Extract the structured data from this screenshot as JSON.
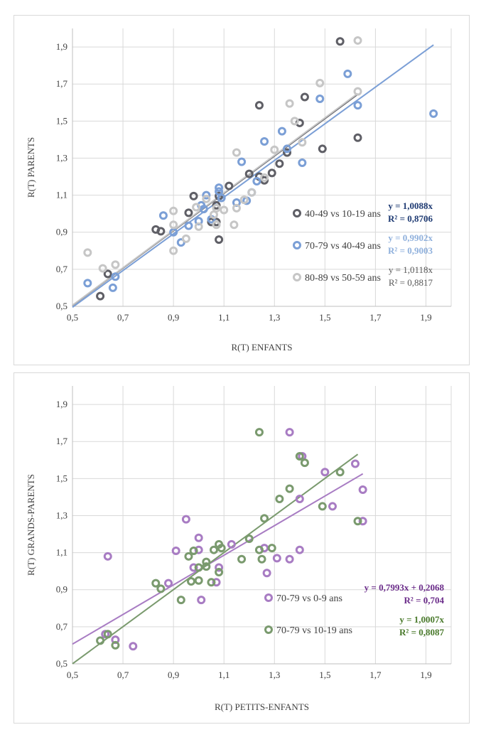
{
  "chart_data": [
    {
      "type": "scatter",
      "xlabel": "R(T) ENFANTS",
      "ylabel": "R(T) PARENTS",
      "xlim": [
        0.5,
        2.0
      ],
      "ylim": [
        0.5,
        2.0
      ],
      "xticks": [
        "0,5",
        "0,7",
        "0,9",
        "1,1",
        "1,3",
        "1,5",
        "1,7",
        "1,9"
      ],
      "yticks": [
        "0,5",
        "0,7",
        "0,9",
        "1,1",
        "1,3",
        "1,5",
        "1,7",
        "1,9"
      ],
      "grid": true,
      "legend_position": "right",
      "series": [
        {
          "name": "40-49 vs 10-19 ans",
          "color": "#5f5f66",
          "equation": "y = 1,0088x",
          "r2": "R² = 0,8706",
          "equation_color": "#1f3b73",
          "bold": true,
          "trend": {
            "slope": 1.0088,
            "intercept": 0,
            "x0": 0.5,
            "x1": 1.63
          },
          "points": [
            [
              0.61,
              0.555
            ],
            [
              0.64,
              0.675
            ],
            [
              0.83,
              0.915
            ],
            [
              0.85,
              0.905
            ],
            [
              0.96,
              1.005
            ],
            [
              0.98,
              1.095
            ],
            [
              1.05,
              0.955
            ],
            [
              1.07,
              0.955
            ],
            [
              1.07,
              1.045
            ],
            [
              1.08,
              0.86
            ],
            [
              1.08,
              1.095
            ],
            [
              1.12,
              1.15
            ],
            [
              1.2,
              1.215
            ],
            [
              1.24,
              1.2
            ],
            [
              1.24,
              1.585
            ],
            [
              1.26,
              1.18
            ],
            [
              1.29,
              1.22
            ],
            [
              1.32,
              1.27
            ],
            [
              1.35,
              1.33
            ],
            [
              1.4,
              1.49
            ],
            [
              1.42,
              1.63
            ],
            [
              1.49,
              1.35
            ],
            [
              1.56,
              1.93
            ],
            [
              1.63,
              1.41
            ]
          ]
        },
        {
          "name": "70-79 vs 40-49 ans",
          "color": "#7b9fd6",
          "equation": "y = 0,9902x",
          "r2": "R² = 0,9003",
          "equation_color": "#8fb0dc",
          "bold": true,
          "trend": {
            "slope": 0.9902,
            "intercept": 0,
            "x0": 0.5,
            "x1": 1.93
          },
          "points": [
            [
              0.56,
              0.625
            ],
            [
              0.66,
              0.6
            ],
            [
              0.67,
              0.66
            ],
            [
              0.86,
              0.99
            ],
            [
              0.9,
              0.9
            ],
            [
              0.93,
              0.845
            ],
            [
              0.96,
              0.935
            ],
            [
              1.0,
              0.96
            ],
            [
              1.01,
              1.045
            ],
            [
              1.02,
              1.025
            ],
            [
              1.03,
              1.1
            ],
            [
              1.05,
              0.97
            ],
            [
              1.08,
              1.14
            ],
            [
              1.08,
              1.12
            ],
            [
              1.09,
              1.085
            ],
            [
              1.15,
              1.06
            ],
            [
              1.17,
              1.28
            ],
            [
              1.19,
              1.07
            ],
            [
              1.21,
              1.115
            ],
            [
              1.23,
              1.175
            ],
            [
              1.26,
              1.39
            ],
            [
              1.33,
              1.445
            ],
            [
              1.35,
              1.35
            ],
            [
              1.41,
              1.275
            ],
            [
              1.48,
              1.62
            ],
            [
              1.59,
              1.755
            ],
            [
              1.63,
              1.585
            ],
            [
              1.93,
              1.54
            ]
          ]
        },
        {
          "name": "80-89 vs 50-59 ans",
          "color": "#c6c6c6",
          "equation": "y = 1,0118x",
          "r2": "R² = 0,8817",
          "equation_color": "#595959",
          "bold": false,
          "trend": {
            "slope": 1.0118,
            "intercept": 0,
            "x0": 0.5,
            "x1": 1.63
          },
          "points": [
            [
              0.56,
              0.79
            ],
            [
              0.62,
              0.705
            ],
            [
              0.67,
              0.725
            ],
            [
              0.9,
              0.8
            ],
            [
              0.9,
              1.015
            ],
            [
              0.9,
              0.94
            ],
            [
              0.95,
              0.865
            ],
            [
              0.99,
              1.035
            ],
            [
              1.0,
              0.93
            ],
            [
              1.03,
              1.08
            ],
            [
              1.06,
              0.995
            ],
            [
              1.07,
              0.94
            ],
            [
              1.07,
              1.03
            ],
            [
              1.1,
              1.02
            ],
            [
              1.14,
              0.94
            ],
            [
              1.15,
              1.03
            ],
            [
              1.15,
              1.33
            ],
            [
              1.18,
              1.075
            ],
            [
              1.21,
              1.115
            ],
            [
              1.26,
              1.195
            ],
            [
              1.3,
              1.345
            ],
            [
              1.36,
              1.595
            ],
            [
              1.38,
              1.5
            ],
            [
              1.41,
              1.385
            ],
            [
              1.48,
              1.705
            ],
            [
              1.63,
              1.66
            ],
            [
              1.63,
              1.935
            ]
          ]
        }
      ]
    },
    {
      "type": "scatter",
      "xlabel": "R(T) PETITS-ENFANTS",
      "ylabel": "R(T) GRANDS-PARENTS",
      "xlim": [
        0.5,
        2.0
      ],
      "ylim": [
        0.5,
        2.0
      ],
      "xticks": [
        "0,5",
        "0,7",
        "0,9",
        "1,1",
        "1,3",
        "1,5",
        "1,7",
        "1,9"
      ],
      "yticks": [
        "0,5",
        "0,7",
        "0,9",
        "1,1",
        "1,3",
        "1,5",
        "1,7",
        "1,9"
      ],
      "grid": true,
      "legend_position": "right",
      "series": [
        {
          "name": "70-79 vs 0-9 ans",
          "color": "#a87cc3",
          "equation": "y = 0,7993x + 0,2068",
          "r2": "R² = 0,704",
          "equation_color": "#6b2c8a",
          "bold": true,
          "trend": {
            "slope": 0.7993,
            "intercept": 0.2068,
            "x0": 0.5,
            "x1": 1.65
          },
          "points": [
            [
              0.63,
              0.66
            ],
            [
              0.64,
              1.08
            ],
            [
              0.67,
              0.63
            ],
            [
              0.74,
              0.595
            ],
            [
              0.88,
              0.935
            ],
            [
              0.91,
              1.11
            ],
            [
              0.95,
              1.28
            ],
            [
              0.98,
              1.02
            ],
            [
              1.0,
              1.18
            ],
            [
              1.0,
              1.115
            ],
            [
              1.01,
              0.845
            ],
            [
              1.07,
              0.94
            ],
            [
              1.08,
              1.02
            ],
            [
              1.13,
              1.145
            ],
            [
              1.26,
              1.125
            ],
            [
              1.27,
              0.99
            ],
            [
              1.31,
              1.07
            ],
            [
              1.36,
              1.065
            ],
            [
              1.36,
              1.75
            ],
            [
              1.4,
              1.39
            ],
            [
              1.4,
              1.115
            ],
            [
              1.41,
              1.62
            ],
            [
              1.5,
              1.535
            ],
            [
              1.53,
              1.35
            ],
            [
              1.62,
              1.58
            ],
            [
              1.65,
              1.44
            ],
            [
              1.65,
              1.27
            ]
          ]
        },
        {
          "name": "70-79 vs 10-19 ans",
          "color": "#7a9a6e",
          "equation": "y = 1,0007x",
          "r2": "R² = 0,8087",
          "equation_color": "#4a7a2c",
          "bold": true,
          "trend": {
            "slope": 1.0007,
            "intercept": 0,
            "x0": 0.5,
            "x1": 1.63
          },
          "points": [
            [
              0.61,
              0.625
            ],
            [
              0.64,
              0.66
            ],
            [
              0.67,
              0.6
            ],
            [
              0.83,
              0.935
            ],
            [
              0.85,
              0.905
            ],
            [
              0.93,
              0.845
            ],
            [
              0.96,
              1.08
            ],
            [
              0.97,
              0.945
            ],
            [
              0.98,
              1.11
            ],
            [
              1.0,
              0.95
            ],
            [
              1.0,
              1.02
            ],
            [
              1.03,
              1.025
            ],
            [
              1.03,
              1.05
            ],
            [
              1.05,
              0.94
            ],
            [
              1.06,
              1.115
            ],
            [
              1.08,
              0.995
            ],
            [
              1.08,
              1.145
            ],
            [
              1.09,
              1.125
            ],
            [
              1.17,
              1.065
            ],
            [
              1.2,
              1.175
            ],
            [
              1.24,
              1.115
            ],
            [
              1.24,
              1.75
            ],
            [
              1.25,
              1.065
            ],
            [
              1.26,
              1.285
            ],
            [
              1.29,
              1.125
            ],
            [
              1.32,
              1.39
            ],
            [
              1.36,
              1.445
            ],
            [
              1.4,
              1.62
            ],
            [
              1.42,
              1.585
            ],
            [
              1.49,
              1.35
            ],
            [
              1.56,
              1.535
            ],
            [
              1.63,
              1.27
            ]
          ]
        }
      ]
    }
  ]
}
